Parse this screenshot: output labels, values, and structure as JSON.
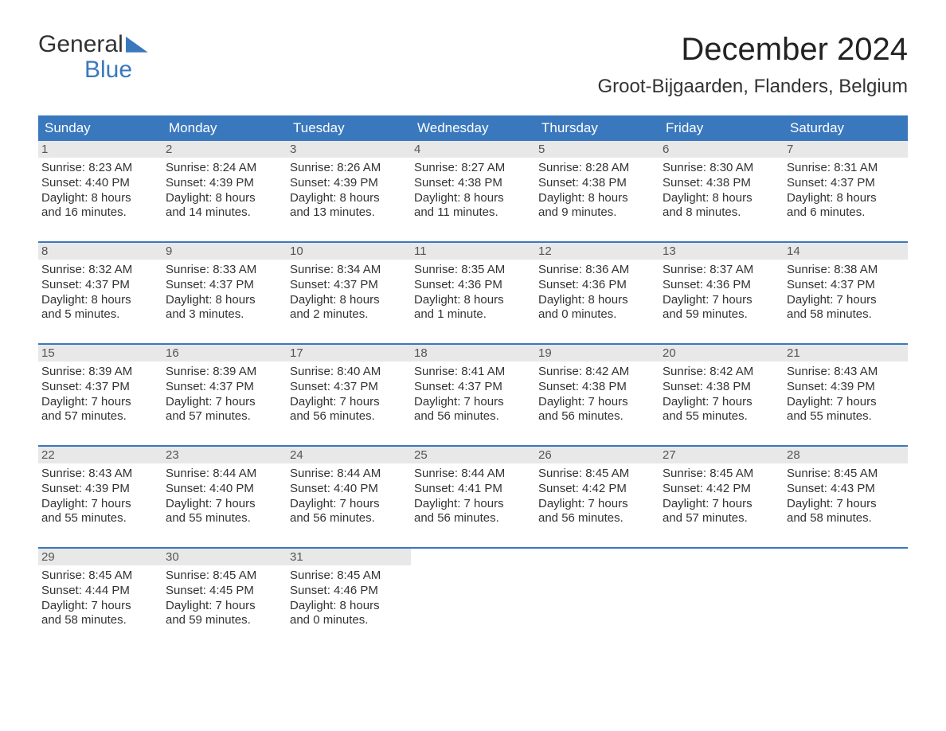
{
  "brand": {
    "top": "General",
    "bottom": "Blue"
  },
  "title": "December 2024",
  "location": "Groot-Bijgaarden, Flanders, Belgium",
  "colors": {
    "header_bg": "#3a78be",
    "header_text": "#ffffff",
    "daynum_bg": "#e8e8e8",
    "text": "#333333",
    "background": "#ffffff",
    "row_divider": "#3a78be"
  },
  "day_labels": [
    "Sunday",
    "Monday",
    "Tuesday",
    "Wednesday",
    "Thursday",
    "Friday",
    "Saturday"
  ],
  "weeks": [
    [
      {
        "n": "1",
        "sunrise": "8:23 AM",
        "sunset": "4:40 PM",
        "day_h": "8",
        "day_m": "16 minutes"
      },
      {
        "n": "2",
        "sunrise": "8:24 AM",
        "sunset": "4:39 PM",
        "day_h": "8",
        "day_m": "14 minutes"
      },
      {
        "n": "3",
        "sunrise": "8:26 AM",
        "sunset": "4:39 PM",
        "day_h": "8",
        "day_m": "13 minutes"
      },
      {
        "n": "4",
        "sunrise": "8:27 AM",
        "sunset": "4:38 PM",
        "day_h": "8",
        "day_m": "11 minutes"
      },
      {
        "n": "5",
        "sunrise": "8:28 AM",
        "sunset": "4:38 PM",
        "day_h": "8",
        "day_m": "9 minutes"
      },
      {
        "n": "6",
        "sunrise": "8:30 AM",
        "sunset": "4:38 PM",
        "day_h": "8",
        "day_m": "8 minutes"
      },
      {
        "n": "7",
        "sunrise": "8:31 AM",
        "sunset": "4:37 PM",
        "day_h": "8",
        "day_m": "6 minutes"
      }
    ],
    [
      {
        "n": "8",
        "sunrise": "8:32 AM",
        "sunset": "4:37 PM",
        "day_h": "8",
        "day_m": "5 minutes"
      },
      {
        "n": "9",
        "sunrise": "8:33 AM",
        "sunset": "4:37 PM",
        "day_h": "8",
        "day_m": "3 minutes"
      },
      {
        "n": "10",
        "sunrise": "8:34 AM",
        "sunset": "4:37 PM",
        "day_h": "8",
        "day_m": "2 minutes"
      },
      {
        "n": "11",
        "sunrise": "8:35 AM",
        "sunset": "4:36 PM",
        "day_h": "8",
        "day_m": "1 minute"
      },
      {
        "n": "12",
        "sunrise": "8:36 AM",
        "sunset": "4:36 PM",
        "day_h": "8",
        "day_m": "0 minutes"
      },
      {
        "n": "13",
        "sunrise": "8:37 AM",
        "sunset": "4:36 PM",
        "day_h": "7",
        "day_m": "59 minutes"
      },
      {
        "n": "14",
        "sunrise": "8:38 AM",
        "sunset": "4:37 PM",
        "day_h": "7",
        "day_m": "58 minutes"
      }
    ],
    [
      {
        "n": "15",
        "sunrise": "8:39 AM",
        "sunset": "4:37 PM",
        "day_h": "7",
        "day_m": "57 minutes"
      },
      {
        "n": "16",
        "sunrise": "8:39 AM",
        "sunset": "4:37 PM",
        "day_h": "7",
        "day_m": "57 minutes"
      },
      {
        "n": "17",
        "sunrise": "8:40 AM",
        "sunset": "4:37 PM",
        "day_h": "7",
        "day_m": "56 minutes"
      },
      {
        "n": "18",
        "sunrise": "8:41 AM",
        "sunset": "4:37 PM",
        "day_h": "7",
        "day_m": "56 minutes"
      },
      {
        "n": "19",
        "sunrise": "8:42 AM",
        "sunset": "4:38 PM",
        "day_h": "7",
        "day_m": "56 minutes"
      },
      {
        "n": "20",
        "sunrise": "8:42 AM",
        "sunset": "4:38 PM",
        "day_h": "7",
        "day_m": "55 minutes"
      },
      {
        "n": "21",
        "sunrise": "8:43 AM",
        "sunset": "4:39 PM",
        "day_h": "7",
        "day_m": "55 minutes"
      }
    ],
    [
      {
        "n": "22",
        "sunrise": "8:43 AM",
        "sunset": "4:39 PM",
        "day_h": "7",
        "day_m": "55 minutes"
      },
      {
        "n": "23",
        "sunrise": "8:44 AM",
        "sunset": "4:40 PM",
        "day_h": "7",
        "day_m": "55 minutes"
      },
      {
        "n": "24",
        "sunrise": "8:44 AM",
        "sunset": "4:40 PM",
        "day_h": "7",
        "day_m": "56 minutes"
      },
      {
        "n": "25",
        "sunrise": "8:44 AM",
        "sunset": "4:41 PM",
        "day_h": "7",
        "day_m": "56 minutes"
      },
      {
        "n": "26",
        "sunrise": "8:45 AM",
        "sunset": "4:42 PM",
        "day_h": "7",
        "day_m": "56 minutes"
      },
      {
        "n": "27",
        "sunrise": "8:45 AM",
        "sunset": "4:42 PM",
        "day_h": "7",
        "day_m": "57 minutes"
      },
      {
        "n": "28",
        "sunrise": "8:45 AM",
        "sunset": "4:43 PM",
        "day_h": "7",
        "day_m": "58 minutes"
      }
    ],
    [
      {
        "n": "29",
        "sunrise": "8:45 AM",
        "sunset": "4:44 PM",
        "day_h": "7",
        "day_m": "58 minutes"
      },
      {
        "n": "30",
        "sunrise": "8:45 AM",
        "sunset": "4:45 PM",
        "day_h": "7",
        "day_m": "59 minutes"
      },
      {
        "n": "31",
        "sunrise": "8:45 AM",
        "sunset": "4:46 PM",
        "day_h": "8",
        "day_m": "0 minutes"
      },
      null,
      null,
      null,
      null
    ]
  ],
  "labels": {
    "sunrise": "Sunrise:",
    "sunset": "Sunset:",
    "daylight": "Daylight:",
    "hours": "hours",
    "and": "and"
  }
}
